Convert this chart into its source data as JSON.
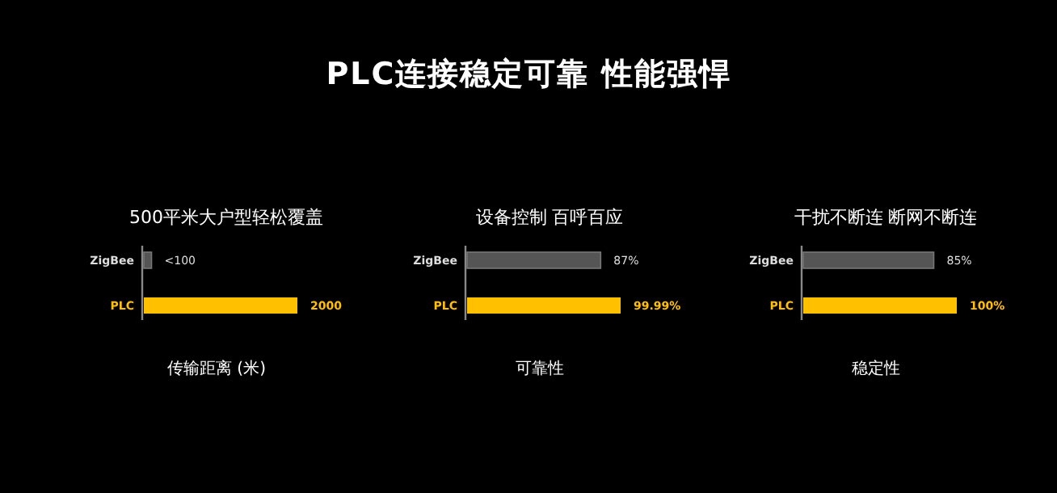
{
  "chart_data": [
    {
      "type": "other",
      "title": "PLC连接稳定可靠 性能强悍"
    },
    {
      "type": "bar",
      "orientation": "horizontal",
      "title": "500平米大户型轻松覆盖",
      "xlabel": "传输距离 (米)",
      "categories": [
        "ZigBee",
        "PLC"
      ],
      "values": [
        100,
        2000
      ],
      "colors": [
        "#555555",
        "#ffc000"
      ],
      "value_labels": [
        "<100",
        "2000"
      ]
    },
    {
      "type": "bar",
      "orientation": "horizontal",
      "title": "设备控制 百呼百应",
      "xlabel": "可靠性",
      "categories": [
        "ZigBee",
        "PLC"
      ],
      "values": [
        87,
        99.99
      ],
      "colors": [
        "#555555",
        "#ffc000"
      ],
      "value_labels": [
        "87%",
        "99.99%"
      ]
    },
    {
      "type": "bar",
      "orientation": "horizontal",
      "title": "干扰不断连 断网不断连",
      "xlabel": "稳定性",
      "categories": [
        "ZigBee",
        "PLC"
      ],
      "values": [
        85,
        100
      ],
      "colors": [
        "#555555",
        "#ffc000"
      ],
      "value_labels": [
        "85%",
        "100%"
      ]
    }
  ]
}
